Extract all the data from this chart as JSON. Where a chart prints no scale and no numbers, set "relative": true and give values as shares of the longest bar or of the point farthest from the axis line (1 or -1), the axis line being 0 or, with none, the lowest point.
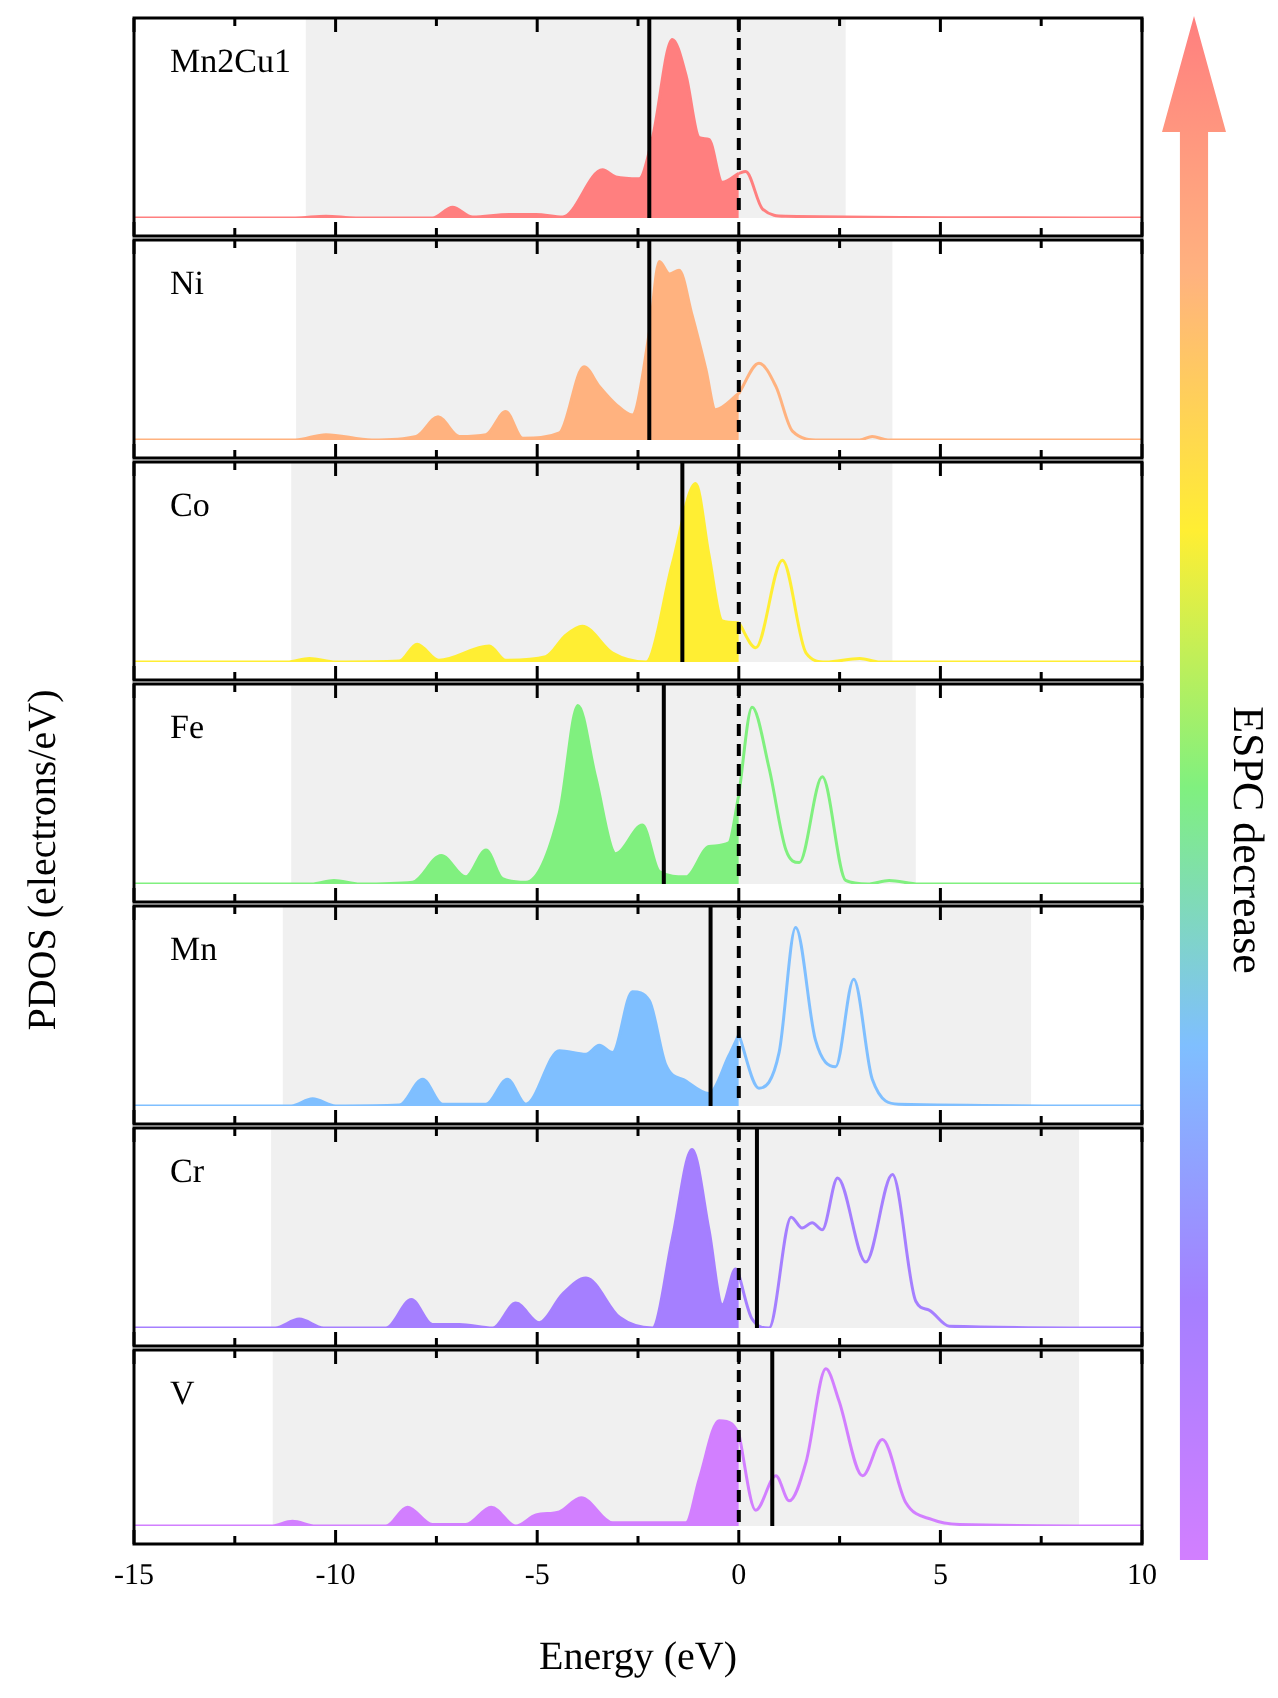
{
  "chart_data": [
    {
      "type": "area",
      "title": "Mn2Cu1",
      "relative": true,
      "xlim": [
        -15,
        10
      ],
      "xticks": [
        -15,
        {
          "value": -12.5,
          "label": null
        },
        -10,
        {
          "value": -7.5,
          "label": null
        },
        -5,
        {
          "value": -2.5,
          "label": null
        },
        0,
        {
          "value": 2.5,
          "label": null
        },
        5,
        {
          "value": 7.5,
          "label": null
        },
        10
      ],
      "tick_labels": false,
      "annotations": [
        "ESPC decrease"
      ],
      "bands": [
        {
          "axis": "x",
          "from": -10.74,
          "to": 2.65,
          "color": "#f0f0f0"
        }
      ],
      "ref_lines": [
        {
          "axis": "x",
          "value": -2.22,
          "color": "#000000"
        },
        {
          "axis": "x",
          "value": 0,
          "color": "#000000",
          "line_style": "dashed"
        }
      ],
      "series": [
        {
          "type": "area",
          "color": "#ff7f7f",
          "x": [
            -15,
            -11,
            -10.24,
            -9.5,
            -7.6,
            -7.1,
            -6.6,
            -5.7,
            -5.03,
            -4.37,
            -3.38,
            -3.05,
            -2.47,
            -2.14,
            -1.65,
            -1.31,
            -0.98,
            -0.74,
            -0.41,
            0
          ],
          "values": [
            0,
            0,
            0.01,
            0,
            0,
            0.06,
            0.005,
            0.02,
            0.02,
            0.005,
            0.27,
            0.23,
            0.22,
            0.45,
            1,
            0.8,
            0.45,
            0.44,
            0.2,
            0.25
          ]
        },
        {
          "type": "line",
          "color": "#ff7f7f",
          "x": [
            0,
            0.17,
            0.59,
            1.17,
            10
          ],
          "values": [
            0.25,
            0.26,
            0.05,
            0.01,
            0
          ]
        }
      ]
    },
    {
      "type": "area",
      "title": "Ni",
      "relative": true,
      "xlim": [
        -15,
        10
      ],
      "xticks": [
        -15,
        {
          "value": -12.5,
          "label": null
        },
        -10,
        {
          "value": -7.5,
          "label": null
        },
        -5,
        {
          "value": -2.5,
          "label": null
        },
        0,
        {
          "value": 2.5,
          "label": null
        },
        5,
        {
          "value": 7.5,
          "label": null
        },
        10
      ],
      "tick_labels": false,
      "bands": [
        {
          "axis": "x",
          "from": -10.98,
          "to": 3.81,
          "color": "#f0f0f0"
        }
      ],
      "ref_lines": [
        {
          "axis": "x",
          "value": -2.22,
          "color": "#000000"
        },
        {
          "axis": "x",
          "value": 0,
          "color": "#000000",
          "line_style": "dashed"
        }
      ],
      "series": [
        {
          "type": "area",
          "color": "#ffb27f",
          "x": [
            -15,
            -11,
            -10.24,
            -9.1,
            -8.0,
            -7.46,
            -6.93,
            -6.27,
            -5.78,
            -5.36,
            -4.45,
            -3.84,
            -3.46,
            -3.05,
            -2.64,
            -2.22,
            -1.97,
            -1.72,
            -1.48,
            -1.16,
            -0.82,
            -0.58,
            0
          ],
          "values": [
            0,
            0,
            0.03,
            0,
            0.02,
            0.13,
            0.02,
            0.03,
            0.16,
            0.01,
            0.04,
            0.41,
            0.3,
            0.2,
            0.14,
            0.6,
            1,
            0.93,
            0.95,
            0.7,
            0.4,
            0.17,
            0.26
          ]
        },
        {
          "type": "line",
          "color": "#ffb27f",
          "x": [
            0,
            0.5,
            0.92,
            1.33,
            2.0,
            3.0,
            3.31,
            3.7,
            10
          ],
          "values": [
            0.26,
            0.43,
            0.3,
            0.05,
            0,
            0,
            0.02,
            0,
            0
          ]
        }
      ]
    },
    {
      "type": "area",
      "title": "Co",
      "relative": true,
      "xlim": [
        -15,
        10
      ],
      "xticks": [
        -15,
        {
          "value": -12.5,
          "label": null
        },
        -10,
        {
          "value": -7.5,
          "label": null
        },
        -5,
        {
          "value": -2.5,
          "label": null
        },
        0,
        {
          "value": 2.5,
          "label": null
        },
        5,
        {
          "value": 7.5,
          "label": null
        },
        10
      ],
      "tick_labels": false,
      "bands": [
        {
          "axis": "x",
          "from": -11.1,
          "to": 3.81,
          "color": "#f0f0f0"
        }
      ],
      "ref_lines": [
        {
          "axis": "x",
          "value": -1.4,
          "color": "#000000"
        },
        {
          "axis": "x",
          "value": 0,
          "color": "#000000",
          "line_style": "dashed"
        }
      ],
      "series": [
        {
          "type": "area",
          "color": "#ffee33",
          "x": [
            -15,
            -11.2,
            -10.65,
            -10,
            -8.42,
            -7.98,
            -7.44,
            -6.19,
            -5.78,
            -4.79,
            -4.29,
            -3.88,
            -3.13,
            -2.3,
            -1.65,
            -1.07,
            -0.74,
            -0.41,
            0
          ],
          "values": [
            0,
            0,
            0.02,
            0,
            0.005,
            0.1,
            0.01,
            0.09,
            0.01,
            0.03,
            0.15,
            0.2,
            0.05,
            0,
            0.55,
            1,
            0.6,
            0.23,
            0.22
          ]
        },
        {
          "type": "line",
          "color": "#ffee33",
          "x": [
            0,
            0.42,
            1.08,
            1.67,
            2.16,
            3.0,
            3.5,
            10
          ],
          "values": [
            0.22,
            0.08,
            0.57,
            0.05,
            0,
            0.02,
            0,
            0
          ]
        }
      ]
    },
    {
      "type": "area",
      "title": "Fe",
      "ylabel": "PDOS (electrons/eV)",
      "relative": true,
      "xlim": [
        -15,
        10
      ],
      "xticks": [
        -15,
        {
          "value": -12.5,
          "label": null
        },
        -10,
        {
          "value": -7.5,
          "label": null
        },
        -5,
        {
          "value": -2.5,
          "label": null
        },
        0,
        {
          "value": 2.5,
          "label": null
        },
        5,
        {
          "value": 7.5,
          "label": null
        },
        10
      ],
      "tick_labels": false,
      "bands": [
        {
          "axis": "x",
          "from": -11.1,
          "to": 4.39,
          "color": "#f0f0f0"
        }
      ],
      "ref_lines": [
        {
          "axis": "x",
          "value": -1.86,
          "color": "#000000"
        },
        {
          "axis": "x",
          "value": 0,
          "color": "#000000",
          "line_style": "dashed"
        }
      ],
      "series": [
        {
          "type": "area",
          "color": "#80f07f",
          "x": [
            -15,
            -10.6,
            -10.04,
            -9.4,
            -8.09,
            -7.38,
            -6.77,
            -6.27,
            -5.86,
            -5.28,
            -4.45,
            -3.99,
            -3.55,
            -3.05,
            -2.39,
            -1.97,
            -1.31,
            -0.74,
            -0.25,
            0
          ],
          "values": [
            0,
            0,
            0.02,
            0,
            0.01,
            0.16,
            0.04,
            0.19,
            0.03,
            0.01,
            0.4,
            1,
            0.6,
            0.17,
            0.33,
            0.07,
            0.04,
            0.21,
            0.23,
            0.5
          ]
        },
        {
          "type": "line",
          "color": "#80f07f",
          "x": [
            0,
            0.33,
            0.75,
            1.17,
            1.5,
            2.07,
            2.65,
            3.2,
            3.73,
            4.47,
            10
          ],
          "values": [
            0.5,
            0.99,
            0.65,
            0.19,
            0.12,
            0.6,
            0.02,
            0,
            0.02,
            0,
            0
          ]
        }
      ]
    },
    {
      "type": "area",
      "title": "Mn",
      "relative": true,
      "xlim": [
        -15,
        10
      ],
      "xticks": [
        -15,
        {
          "value": -12.5,
          "label": null
        },
        -10,
        {
          "value": -7.5,
          "label": null
        },
        -5,
        {
          "value": -2.5,
          "label": null
        },
        0,
        {
          "value": 2.5,
          "label": null
        },
        5,
        {
          "value": 7.5,
          "label": null
        },
        10
      ],
      "tick_labels": false,
      "bands": [
        {
          "axis": "x",
          "from": -11.31,
          "to": 7.25,
          "color": "#f0f0f0"
        }
      ],
      "ref_lines": [
        {
          "axis": "x",
          "value": -0.7,
          "color": "#000000"
        },
        {
          "axis": "x",
          "value": 0,
          "color": "#000000",
          "line_style": "dashed"
        }
      ],
      "series": [
        {
          "type": "area",
          "color": "#7fbfff",
          "x": [
            -15,
            -11.1,
            -10.57,
            -10,
            -8.42,
            -7.84,
            -7.35,
            -6.77,
            -6.27,
            -5.74,
            -5.28,
            -4.45,
            -3.79,
            -3.46,
            -3.13,
            -2.64,
            -2.22,
            -1.81,
            -1.31,
            -0.74,
            -0.25,
            0
          ],
          "values": [
            0,
            0,
            0.04,
            0,
            0.005,
            0.15,
            0.01,
            0.01,
            0.01,
            0.15,
            0.01,
            0.31,
            0.29,
            0.34,
            0.3,
            0.64,
            0.59,
            0.23,
            0.14,
            0.07,
            0.28,
            0.4
          ]
        },
        {
          "type": "line",
          "color": "#7fbfff",
          "x": [
            0,
            0.5,
            1.0,
            1.41,
            1.9,
            2.4,
            2.85,
            3.31,
            3.97,
            10
          ],
          "values": [
            0.4,
            0.1,
            0.3,
            1,
            0.37,
            0.22,
            0.71,
            0.15,
            0.01,
            0
          ]
        }
      ]
    },
    {
      "type": "area",
      "title": "Cr",
      "relative": true,
      "xlim": [
        -15,
        10
      ],
      "xticks": [
        -15,
        {
          "value": -12.5,
          "label": null
        },
        -10,
        {
          "value": -7.5,
          "label": null
        },
        -5,
        {
          "value": -2.5,
          "label": null
        },
        0,
        {
          "value": 2.5,
          "label": null
        },
        5,
        {
          "value": 7.5,
          "label": null
        },
        10
      ],
      "tick_labels": false,
      "bands": [
        {
          "axis": "x",
          "from": -11.6,
          "to": 8.44,
          "color": "#f0f0f0"
        }
      ],
      "ref_lines": [
        {
          "axis": "x",
          "value": 0.45,
          "color": "#000000"
        },
        {
          "axis": "x",
          "value": 0,
          "color": "#000000",
          "line_style": "dashed"
        }
      ],
      "series": [
        {
          "type": "area",
          "color": "#a57fff",
          "x": [
            -15,
            -11.5,
            -10.9,
            -10.3,
            -8.75,
            -8.12,
            -7.6,
            -6.93,
            -6.1,
            -5.53,
            -4.95,
            -4.37,
            -3.79,
            -2.96,
            -2.14,
            -1.65,
            -1.16,
            -0.74,
            -0.41,
            -0.08,
            0
          ],
          "values": [
            0,
            0,
            0.05,
            0,
            0,
            0.16,
            0.02,
            0.02,
            0,
            0.14,
            0.03,
            0.19,
            0.28,
            0.06,
            0,
            0.5,
            1,
            0.55,
            0.13,
            0.33,
            0.3
          ]
        },
        {
          "type": "line",
          "color": "#a57fff",
          "x": [
            0,
            0.33,
            0.75,
            1.3,
            1.57,
            1.82,
            2.07,
            2.45,
            3.15,
            3.81,
            4.39,
            4.72,
            5.22,
            10
          ],
          "values": [
            0.3,
            0.05,
            0,
            0.62,
            0.56,
            0.59,
            0.55,
            0.84,
            0.37,
            0.86,
            0.15,
            0.1,
            0.01,
            0
          ]
        }
      ]
    },
    {
      "type": "area",
      "title": "V",
      "xlabel": "Energy (eV)",
      "relative": true,
      "xlim": [
        -15,
        10
      ],
      "xticks": [
        -15,
        {
          "value": -12.5,
          "label": null
        },
        -10,
        {
          "value": -7.5,
          "label": null
        },
        -5,
        {
          "value": -2.5,
          "label": null
        },
        0,
        {
          "value": 2.5,
          "label": null
        },
        5,
        {
          "value": 7.5,
          "label": null
        },
        10
      ],
      "tick_labels": "x",
      "bands": [
        {
          "axis": "x",
          "from": -11.56,
          "to": 8.44,
          "color": "#f0f0f0"
        }
      ],
      "ref_lines": [
        {
          "axis": "x",
          "value": 0.83,
          "color": "#000000"
        },
        {
          "axis": "x",
          "value": 0,
          "color": "#000000",
          "line_style": "dashed"
        }
      ],
      "series": [
        {
          "type": "area",
          "color": "#d27fff",
          "x": [
            -15,
            -11.6,
            -11.07,
            -10.5,
            -8.75,
            -8.22,
            -7.6,
            -6.77,
            -6.14,
            -5.53,
            -5.03,
            -4.45,
            -3.91,
            -3.13,
            -1.31,
            -0.98,
            -0.49,
            -0.17,
            0
          ],
          "values": [
            0,
            0,
            0.03,
            0,
            0,
            0.12,
            0.01,
            0.01,
            0.12,
            0,
            0.07,
            0.09,
            0.18,
            0.02,
            0.02,
            0.3,
            0.67,
            0.65,
            0.59
          ]
        },
        {
          "type": "line",
          "color": "#d27fff",
          "x": [
            0,
            0.42,
            0.92,
            1.25,
            1.67,
            2.16,
            2.48,
            3.07,
            3.56,
            4.14,
            4.8,
            5.47,
            10
          ],
          "values": [
            0.59,
            0.1,
            0.32,
            0.16,
            0.41,
            1,
            0.8,
            0.32,
            0.55,
            0.15,
            0.04,
            0.01,
            0
          ]
        }
      ]
    }
  ]
}
